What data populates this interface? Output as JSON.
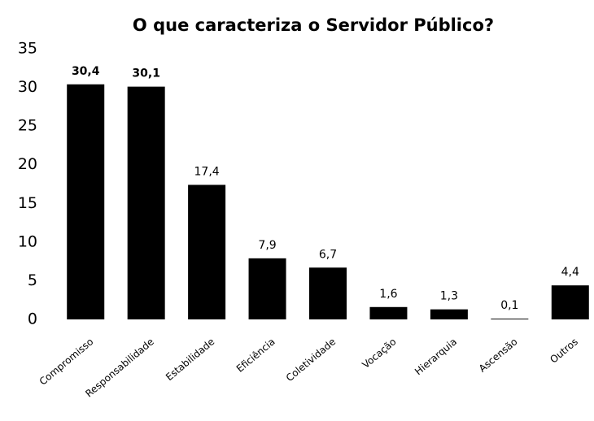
{
  "chart_data": {
    "type": "bar",
    "title": "O que caracteriza o Servidor Público?",
    "categories": [
      "Compromisso",
      "Responsabilidade",
      "Estabilidade",
      "Eficiência",
      "Coletividade",
      "Vocação",
      "Hierarquia",
      "Ascensão",
      "Outros"
    ],
    "values": [
      30.4,
      30.1,
      17.4,
      7.9,
      6.7,
      1.6,
      1.3,
      0.1,
      4.4
    ],
    "value_labels": [
      "30,4",
      "30,1",
      "17,4",
      "7,9",
      "6,7",
      "1,6",
      "1,3",
      "0,1",
      "4,4"
    ],
    "color": "#000000",
    "ylim": [
      0,
      35
    ],
    "yticks": [
      0,
      5,
      10,
      15,
      20,
      25,
      30,
      35
    ],
    "grid": false
  }
}
